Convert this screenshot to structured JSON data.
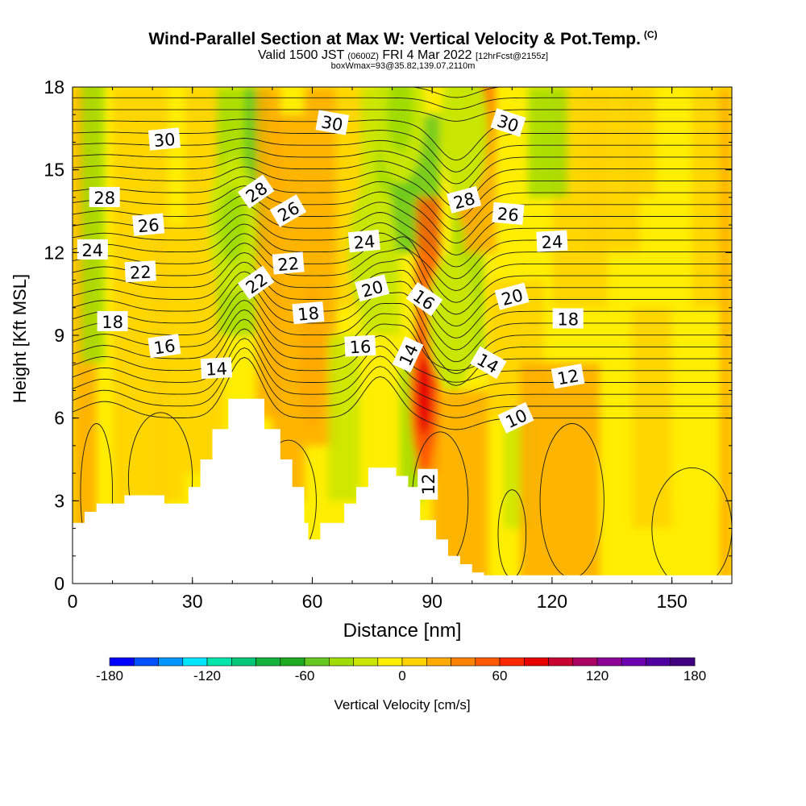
{
  "header": {
    "title": "Wind-Parallel Section at Max W: Vertical Velocity & Pot.Temp.",
    "title_mark": "(C)",
    "sub_valid": "Valid 1500 JST",
    "sub_utc": "(0600Z)",
    "sub_date": "FRI 4 Mar 2022",
    "sub_fcst": "[12hrFcst@2155z]",
    "sub_box": "boxWmax=93@35.82,139.07,2110m"
  },
  "colorbar": {
    "label": "Vertical Velocity [cm/s]",
    "tick_labels": [
      "-180",
      "-120",
      "-60",
      "0",
      "60",
      "120",
      "180"
    ],
    "ticks": [
      -180,
      -120,
      -60,
      0,
      60,
      120,
      180
    ],
    "levels": [
      -180,
      -165,
      -150,
      -135,
      -120,
      -105,
      -90,
      -75,
      -60,
      -45,
      -30,
      -15,
      0,
      15,
      30,
      45,
      60,
      75,
      90,
      105,
      120,
      135,
      150,
      165,
      180
    ],
    "colors": [
      "#0000ff",
      "#0050ff",
      "#0096ff",
      "#00e6ff",
      "#00e6aa",
      "#00c878",
      "#14b43c",
      "#1eaa1e",
      "#64c81e",
      "#a0dc00",
      "#c8e600",
      "#ffee00",
      "#ffd200",
      "#ffaa00",
      "#ff8200",
      "#ff5a00",
      "#ff2800",
      "#e60000",
      "#c80032",
      "#aa0064",
      "#8c0096",
      "#6e00b4",
      "#5000a0",
      "#400080"
    ]
  },
  "chart_data": {
    "type": "heatmap",
    "title": "Wind-Parallel Section at Max W: Vertical Velocity & Pot.Temp.",
    "xlabel": "Distance [nm]",
    "ylabel": "Height [Kft MSL]",
    "xlim": [
      0,
      165
    ],
    "ylim": [
      0,
      18
    ],
    "x_ticks": [
      0,
      30,
      60,
      90,
      120,
      150
    ],
    "y_ticks": [
      0,
      3,
      6,
      9,
      12,
      15,
      18
    ],
    "grid": false,
    "shaded_field": "Vertical Velocity [cm/s]",
    "contour_field": "Pot.Temp.",
    "w_features": [
      {
        "x": 88,
        "y": 6.8,
        "w": 75
      },
      {
        "x": 102,
        "y": 17.3,
        "w": 70
      },
      {
        "x": 60,
        "y": 8.2,
        "w": 25
      },
      {
        "x": 99,
        "y": 15.0,
        "w": 25
      },
      {
        "x": 98,
        "y": 16.5,
        "w": -30
      },
      {
        "x": 82,
        "y": 17.0,
        "w": -45
      },
      {
        "x": 40,
        "y": 13.0,
        "w": -40
      },
      {
        "x": 75,
        "y": 12.0,
        "w": -30
      },
      {
        "x": 95,
        "y": 9.5,
        "w": -30
      }
    ],
    "terrain": [
      [
        0,
        2.2
      ],
      [
        3,
        2.2
      ],
      [
        3,
        2.6
      ],
      [
        6,
        2.6
      ],
      [
        6,
        2.9
      ],
      [
        13,
        2.9
      ],
      [
        13,
        3.2
      ],
      [
        23,
        3.2
      ],
      [
        23,
        2.9
      ],
      [
        29,
        2.9
      ],
      [
        29,
        3.5
      ],
      [
        32,
        3.5
      ],
      [
        32,
        4.5
      ],
      [
        35,
        4.5
      ],
      [
        35,
        5.6
      ],
      [
        39,
        5.6
      ],
      [
        39,
        6.7
      ],
      [
        48,
        6.7
      ],
      [
        48,
        5.6
      ],
      [
        52,
        5.6
      ],
      [
        52,
        4.5
      ],
      [
        55,
        4.5
      ],
      [
        55,
        3.5
      ],
      [
        58,
        3.5
      ],
      [
        58,
        2.2
      ],
      [
        59,
        2.2
      ],
      [
        59,
        1.6
      ],
      [
        62,
        1.6
      ],
      [
        62,
        2.2
      ],
      [
        68,
        2.2
      ],
      [
        68,
        2.9
      ],
      [
        71,
        2.9
      ],
      [
        71,
        3.5
      ],
      [
        74,
        3.5
      ],
      [
        74,
        4.2
      ],
      [
        81,
        4.2
      ],
      [
        81,
        3.9
      ],
      [
        84,
        3.9
      ],
      [
        84,
        3.5
      ],
      [
        87,
        3.5
      ],
      [
        87,
        2.3
      ],
      [
        91,
        2.3
      ],
      [
        91,
        1.6
      ],
      [
        94,
        1.6
      ],
      [
        94,
        1.0
      ],
      [
        97,
        1.0
      ],
      [
        97,
        0.7
      ],
      [
        100,
        0.7
      ],
      [
        100,
        0.4
      ],
      [
        103,
        0.4
      ],
      [
        103,
        0.3
      ],
      [
        165,
        0.3
      ]
    ],
    "contour_labels": [
      {
        "text": "30",
        "x": 23,
        "y": 16.1,
        "angle": -5
      },
      {
        "text": "30",
        "x": 65,
        "y": 16.7,
        "angle": 10
      },
      {
        "text": "30",
        "x": 109,
        "y": 16.7,
        "angle": 18
      },
      {
        "text": "28",
        "x": 8,
        "y": 14.0,
        "angle": 0
      },
      {
        "text": "28",
        "x": 46,
        "y": 14.2,
        "angle": -35
      },
      {
        "text": "28",
        "x": 98,
        "y": 13.9,
        "angle": -15
      },
      {
        "text": "26",
        "x": 19,
        "y": 13.0,
        "angle": -5
      },
      {
        "text": "26",
        "x": 54,
        "y": 13.5,
        "angle": -30
      },
      {
        "text": "26",
        "x": 109,
        "y": 13.4,
        "angle": 5
      },
      {
        "text": "24",
        "x": 5,
        "y": 12.1,
        "angle": 0
      },
      {
        "text": "24",
        "x": 73,
        "y": 12.4,
        "angle": -5
      },
      {
        "text": "24",
        "x": 120,
        "y": 12.4,
        "angle": -3
      },
      {
        "text": "22",
        "x": 17,
        "y": 11.3,
        "angle": -3
      },
      {
        "text": "22",
        "x": 54,
        "y": 11.6,
        "angle": -5
      },
      {
        "text": "22",
        "x": 46,
        "y": 10.9,
        "angle": -35
      },
      {
        "text": "20",
        "x": 75,
        "y": 10.7,
        "angle": -15
      },
      {
        "text": "20",
        "x": 110,
        "y": 10.4,
        "angle": -15
      },
      {
        "text": "18",
        "x": 10,
        "y": 9.5,
        "angle": 0
      },
      {
        "text": "18",
        "x": 59,
        "y": 9.8,
        "angle": -5
      },
      {
        "text": "18",
        "x": 124,
        "y": 9.6,
        "angle": 0
      },
      {
        "text": "16",
        "x": 23,
        "y": 8.6,
        "angle": -8
      },
      {
        "text": "16",
        "x": 72,
        "y": 8.6,
        "angle": -3
      },
      {
        "text": "16",
        "x": 88,
        "y": 10.3,
        "angle": 35
      },
      {
        "text": "14",
        "x": 36,
        "y": 7.8,
        "angle": -3
      },
      {
        "text": "14",
        "x": 84,
        "y": 8.3,
        "angle": -65
      },
      {
        "text": "14",
        "x": 104,
        "y": 8.0,
        "angle": 30
      },
      {
        "text": "12",
        "x": 124,
        "y": 7.5,
        "angle": -10
      },
      {
        "text": "12",
        "x": 89,
        "y": 3.6,
        "angle": -90
      },
      {
        "text": "10",
        "x": 111,
        "y": 6.0,
        "angle": -25
      }
    ]
  }
}
